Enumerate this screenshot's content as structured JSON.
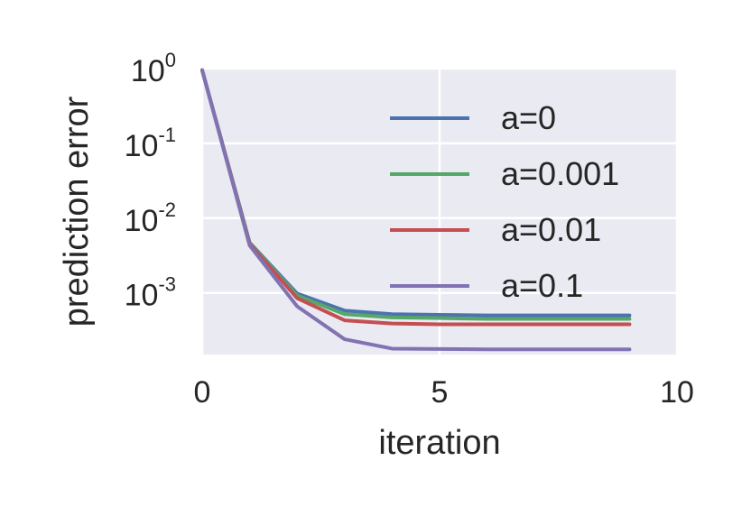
{
  "chart_data": {
    "type": "line",
    "title": "",
    "xlabel": "iteration",
    "ylabel": "prediction error",
    "xlim": [
      0,
      10
    ],
    "ylim": [
      0.00015,
      1.0
    ],
    "y_scale": "log",
    "grid": true,
    "legend_position": "upper right",
    "x_ticks": [
      {
        "value": 0,
        "label": "0"
      },
      {
        "value": 5,
        "label": "5"
      },
      {
        "value": 10,
        "label": "10"
      }
    ],
    "y_ticks": [
      {
        "value": 1,
        "base": "10",
        "exp": "0"
      },
      {
        "value": 0.1,
        "base": "10",
        "exp": "-1"
      },
      {
        "value": 0.01,
        "base": "10",
        "exp": "-2"
      },
      {
        "value": 0.001,
        "base": "10",
        "exp": "-3"
      }
    ],
    "x": [
      0,
      1,
      2,
      3,
      4,
      5,
      6,
      7,
      8,
      9
    ],
    "series": [
      {
        "name": "a=0",
        "color": "#4c72b0",
        "values": [
          0.95,
          0.0047,
          0.00098,
          0.00058,
          0.00052,
          0.00051,
          0.0005,
          0.0005,
          0.0005,
          0.0005
        ]
      },
      {
        "name": "a=0.001",
        "color": "#55a868",
        "values": [
          0.95,
          0.0046,
          0.00092,
          0.00052,
          0.00047,
          0.00046,
          0.00045,
          0.00045,
          0.00045,
          0.00045
        ]
      },
      {
        "name": "a=0.01",
        "color": "#c44e52",
        "values": [
          0.95,
          0.0045,
          0.00085,
          0.00043,
          0.00039,
          0.00038,
          0.00038,
          0.00038,
          0.00038,
          0.00038
        ]
      },
      {
        "name": "a=0.1",
        "color": "#8172b2",
        "values": [
          0.95,
          0.0043,
          0.00066,
          0.00024,
          0.00018,
          0.000178,
          0.000176,
          0.000176,
          0.000176,
          0.000176
        ]
      }
    ]
  }
}
